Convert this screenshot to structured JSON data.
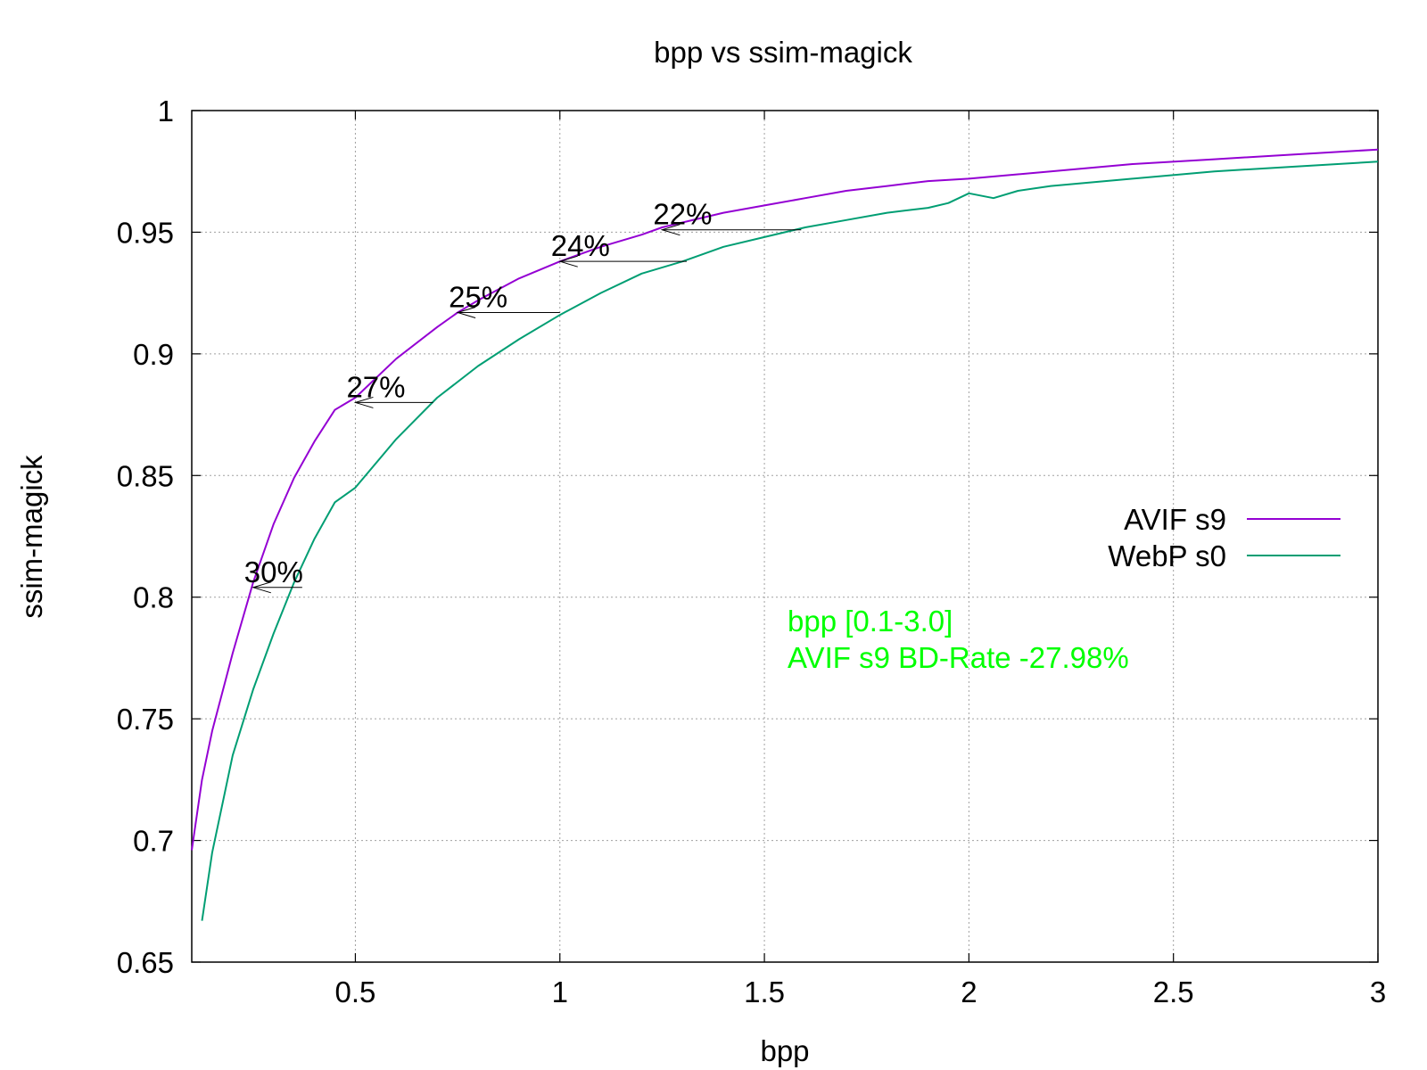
{
  "chart_data": {
    "type": "line",
    "title": "bpp vs ssim-magick",
    "xlabel": "bpp",
    "ylabel": "ssim-magick",
    "xlim": [
      0.1,
      3.0
    ],
    "ylim": [
      0.65,
      1.0
    ],
    "xticks": [
      0.5,
      1,
      1.5,
      2,
      2.5,
      3
    ],
    "xtick_labels": [
      "0.5",
      "1",
      "1.5",
      "2",
      "2.5",
      "3"
    ],
    "yticks": [
      0.65,
      0.7,
      0.75,
      0.8,
      0.85,
      0.9,
      0.95,
      1
    ],
    "ytick_labels": [
      "0.65",
      "0.7",
      "0.75",
      "0.8",
      "0.85",
      "0.9",
      "0.95",
      "1"
    ],
    "grid": true,
    "legend_position": "right",
    "series": [
      {
        "name": "AVIF s9",
        "color": "#9400d3",
        "x": [
          0.1,
          0.125,
          0.15,
          0.2,
          0.25,
          0.3,
          0.35,
          0.4,
          0.45,
          0.5,
          0.6,
          0.7,
          0.75,
          0.8,
          0.9,
          1.0,
          1.1,
          1.2,
          1.25,
          1.3,
          1.4,
          1.5,
          1.6,
          1.7,
          1.8,
          1.9,
          2.0,
          2.2,
          2.4,
          2.6,
          2.8,
          3.0
        ],
        "y": [
          0.696,
          0.725,
          0.745,
          0.777,
          0.806,
          0.83,
          0.849,
          0.864,
          0.877,
          0.882,
          0.898,
          0.911,
          0.917,
          0.922,
          0.931,
          0.938,
          0.944,
          0.949,
          0.952,
          0.954,
          0.958,
          0.961,
          0.964,
          0.967,
          0.969,
          0.971,
          0.972,
          0.975,
          0.978,
          0.98,
          0.982,
          0.984
        ]
      },
      {
        "name": "WebP s0",
        "color": "#009e73",
        "x": [
          0.125,
          0.15,
          0.2,
          0.25,
          0.3,
          0.35,
          0.4,
          0.45,
          0.5,
          0.6,
          0.7,
          0.8,
          0.9,
          1.0,
          1.1,
          1.2,
          1.3,
          1.4,
          1.5,
          1.6,
          1.7,
          1.8,
          1.9,
          1.95,
          2.0,
          2.06,
          2.12,
          2.2,
          2.4,
          2.6,
          2.8,
          3.0
        ],
        "y": [
          0.667,
          0.695,
          0.735,
          0.762,
          0.785,
          0.806,
          0.824,
          0.839,
          0.845,
          0.865,
          0.882,
          0.895,
          0.906,
          0.916,
          0.925,
          0.933,
          0.938,
          0.944,
          0.948,
          0.952,
          0.955,
          0.958,
          0.96,
          0.962,
          0.966,
          0.964,
          0.967,
          0.969,
          0.972,
          0.975,
          0.977,
          0.979
        ]
      }
    ],
    "annotations": [
      {
        "label": "30%",
        "arrow_from": [
          0.37,
          0.804
        ],
        "arrow_to": [
          0.25,
          0.804
        ]
      },
      {
        "label": "27%",
        "arrow_from": [
          0.69,
          0.88
        ],
        "arrow_to": [
          0.5,
          0.88
        ]
      },
      {
        "label": "25%",
        "arrow_from": [
          1.0,
          0.917
        ],
        "arrow_to": [
          0.75,
          0.917
        ]
      },
      {
        "label": "24%",
        "arrow_from": [
          1.31,
          0.938
        ],
        "arrow_to": [
          1.0,
          0.938
        ]
      },
      {
        "label": "22%",
        "arrow_from": [
          1.59,
          0.951
        ],
        "arrow_to": [
          1.25,
          0.951
        ]
      }
    ],
    "notes": {
      "color": "#00ff00",
      "lines": [
        "bpp [0.1-3.0]",
        "AVIF s9 BD-Rate -27.98%"
      ]
    }
  }
}
